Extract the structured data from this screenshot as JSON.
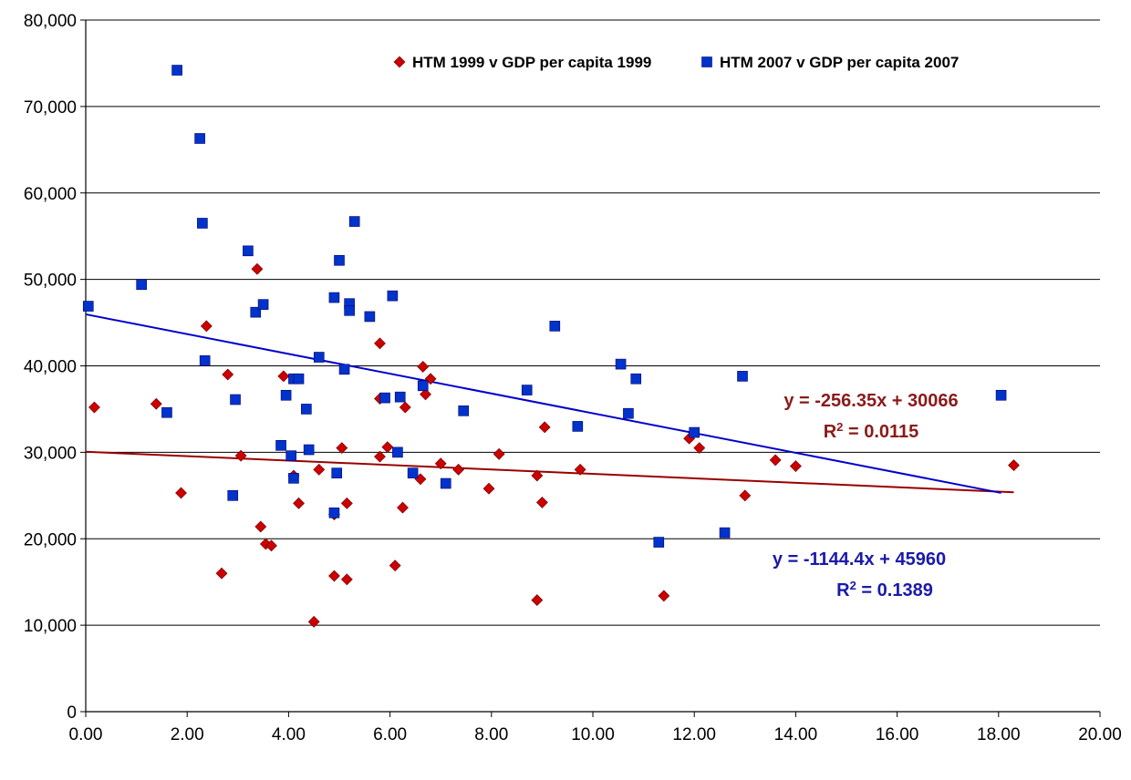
{
  "chart_data": {
    "type": "scatter",
    "title": "",
    "xlabel": "",
    "ylabel": "",
    "xlim": [
      0,
      20
    ],
    "ylim": [
      0,
      80000
    ],
    "x_ticks": [
      "0.00",
      "2.00",
      "4.00",
      "6.00",
      "8.00",
      "10.00",
      "12.00",
      "14.00",
      "16.00",
      "18.00",
      "20.00"
    ],
    "y_ticks": [
      "0",
      "10,000",
      "20,000",
      "30,000",
      "40,000",
      "50,000",
      "60,000",
      "70,000",
      "80,000"
    ],
    "grid": "horizontal",
    "legend_position": "top",
    "series": [
      {
        "name": "HTM 1999 v GDP per capita 1999",
        "marker": "diamond",
        "color": "#cc0000",
        "points": [
          [
            0.17,
            35200
          ],
          [
            1.39,
            35600
          ],
          [
            1.88,
            25300
          ],
          [
            2.38,
            44600
          ],
          [
            2.68,
            16000
          ],
          [
            2.8,
            39000
          ],
          [
            3.06,
            29600
          ],
          [
            3.38,
            51200
          ],
          [
            3.45,
            21400
          ],
          [
            3.55,
            19400
          ],
          [
            3.66,
            19200
          ],
          [
            3.9,
            38800
          ],
          [
            4.1,
            27300
          ],
          [
            4.2,
            24100
          ],
          [
            4.5,
            10400
          ],
          [
            4.6,
            28000
          ],
          [
            4.9,
            15700
          ],
          [
            4.9,
            22800
          ],
          [
            5.05,
            30500
          ],
          [
            5.15,
            15300
          ],
          [
            5.15,
            24100
          ],
          [
            5.8,
            42600
          ],
          [
            5.8,
            29500
          ],
          [
            5.8,
            36200
          ],
          [
            5.95,
            30600
          ],
          [
            6.1,
            16900
          ],
          [
            6.25,
            23600
          ],
          [
            6.3,
            35200
          ],
          [
            6.6,
            26900
          ],
          [
            6.65,
            39900
          ],
          [
            6.7,
            36700
          ],
          [
            6.8,
            38500
          ],
          [
            7.0,
            28700
          ],
          [
            7.35,
            28000
          ],
          [
            7.95,
            25800
          ],
          [
            8.15,
            29800
          ],
          [
            8.9,
            27300
          ],
          [
            8.9,
            12900
          ],
          [
            9.0,
            24200
          ],
          [
            9.05,
            32900
          ],
          [
            9.75,
            28000
          ],
          [
            11.4,
            13400
          ],
          [
            11.9,
            31600
          ],
          [
            12.1,
            30500
          ],
          [
            13.0,
            25000
          ],
          [
            13.6,
            29100
          ],
          [
            14.0,
            28400
          ],
          [
            18.3,
            28500
          ]
        ],
        "trendline": {
          "slope": -256.35,
          "intercept": 30066
        },
        "equation": "y = -256.35x + 30066",
        "r2_label": "R",
        "r2_value": " = 0.0115",
        "color_label": "#8b1a1a"
      },
      {
        "name": "HTM 2007 v GDP per capita 2007",
        "marker": "square",
        "color": "#0033cc",
        "points": [
          [
            0.05,
            46900
          ],
          [
            1.1,
            49400
          ],
          [
            1.6,
            34600
          ],
          [
            1.8,
            74200
          ],
          [
            2.25,
            66300
          ],
          [
            2.3,
            56500
          ],
          [
            2.35,
            40600
          ],
          [
            2.9,
            25000
          ],
          [
            2.95,
            36100
          ],
          [
            3.2,
            53300
          ],
          [
            3.35,
            46200
          ],
          [
            3.5,
            47100
          ],
          [
            3.85,
            30800
          ],
          [
            3.95,
            36600
          ],
          [
            4.05,
            29600
          ],
          [
            4.1,
            38500
          ],
          [
            4.1,
            27000
          ],
          [
            4.2,
            38500
          ],
          [
            4.35,
            35000
          ],
          [
            4.4,
            30300
          ],
          [
            4.6,
            41000
          ],
          [
            4.9,
            23000
          ],
          [
            4.9,
            47900
          ],
          [
            4.95,
            27600
          ],
          [
            5.0,
            52200
          ],
          [
            5.1,
            39600
          ],
          [
            5.2,
            47200
          ],
          [
            5.2,
            46400
          ],
          [
            5.3,
            56700
          ],
          [
            5.6,
            45700
          ],
          [
            5.9,
            36300
          ],
          [
            6.05,
            48100
          ],
          [
            6.15,
            30000
          ],
          [
            6.2,
            36400
          ],
          [
            6.45,
            27600
          ],
          [
            6.65,
            37700
          ],
          [
            7.1,
            26400
          ],
          [
            7.45,
            34800
          ],
          [
            8.7,
            37200
          ],
          [
            9.25,
            44600
          ],
          [
            9.7,
            33000
          ],
          [
            10.55,
            40200
          ],
          [
            10.7,
            34500
          ],
          [
            10.85,
            38500
          ],
          [
            11.3,
            19600
          ],
          [
            12.0,
            32300
          ],
          [
            12.6,
            20700
          ],
          [
            12.95,
            38800
          ],
          [
            18.05,
            36600
          ]
        ],
        "trendline": {
          "slope": -1144.4,
          "intercept": 45960
        },
        "equation": "y = -1144.4x + 45960",
        "r2_label": "R",
        "r2_value": " = 0.1389",
        "color_label": "#1a1aaa"
      }
    ]
  }
}
